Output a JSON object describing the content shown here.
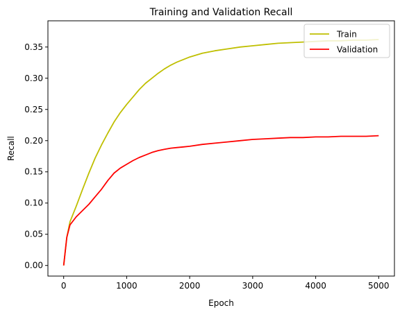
{
  "chart_data": {
    "type": "line",
    "title": "Training and Validation Recall",
    "xlabel": "Epoch",
    "ylabel": "Recall",
    "xlim": [
      -250,
      5250
    ],
    "ylim": [
      -0.017,
      0.392
    ],
    "xticks": [
      0,
      1000,
      2000,
      3000,
      4000,
      5000
    ],
    "xtick_labels": [
      "0",
      "1000",
      "2000",
      "3000",
      "4000",
      "5000"
    ],
    "yticks": [
      0.0,
      0.05,
      0.1,
      0.15,
      0.2,
      0.25,
      0.3,
      0.35
    ],
    "ytick_labels": [
      "0.00",
      "0.05",
      "0.10",
      "0.15",
      "0.20",
      "0.25",
      "0.30",
      "0.35"
    ],
    "grid": false,
    "legend_position": "top-right",
    "series": [
      {
        "name": "Train",
        "color": "#bfbf00",
        "x": [
          0,
          50,
          100,
          200,
          300,
          400,
          500,
          600,
          700,
          800,
          900,
          1000,
          1100,
          1200,
          1300,
          1400,
          1500,
          1600,
          1700,
          1800,
          1900,
          2000,
          2200,
          2400,
          2600,
          2800,
          3000,
          3200,
          3400,
          3600,
          3800,
          4000,
          4200,
          4400,
          4600,
          4800,
          5000
        ],
        "values": [
          0.0,
          0.045,
          0.07,
          0.095,
          0.122,
          0.148,
          0.172,
          0.193,
          0.212,
          0.23,
          0.245,
          0.258,
          0.27,
          0.282,
          0.292,
          0.3,
          0.308,
          0.315,
          0.321,
          0.326,
          0.33,
          0.334,
          0.34,
          0.344,
          0.347,
          0.35,
          0.352,
          0.354,
          0.356,
          0.357,
          0.358,
          0.359,
          0.36,
          0.36,
          0.361,
          0.361,
          0.362
        ]
      },
      {
        "name": "Validation",
        "color": "#ff0000",
        "x": [
          0,
          50,
          100,
          200,
          300,
          400,
          500,
          600,
          700,
          800,
          900,
          1000,
          1100,
          1200,
          1300,
          1400,
          1500,
          1600,
          1700,
          1800,
          1900,
          2000,
          2200,
          2400,
          2600,
          2800,
          3000,
          3200,
          3400,
          3600,
          3800,
          4000,
          4200,
          4400,
          4600,
          4800,
          5000
        ],
        "values": [
          0.0,
          0.045,
          0.065,
          0.078,
          0.088,
          0.098,
          0.11,
          0.122,
          0.136,
          0.148,
          0.156,
          0.162,
          0.168,
          0.173,
          0.177,
          0.181,
          0.184,
          0.186,
          0.188,
          0.189,
          0.19,
          0.191,
          0.194,
          0.196,
          0.198,
          0.2,
          0.202,
          0.203,
          0.204,
          0.205,
          0.205,
          0.206,
          0.206,
          0.207,
          0.207,
          0.207,
          0.208
        ]
      }
    ]
  }
}
